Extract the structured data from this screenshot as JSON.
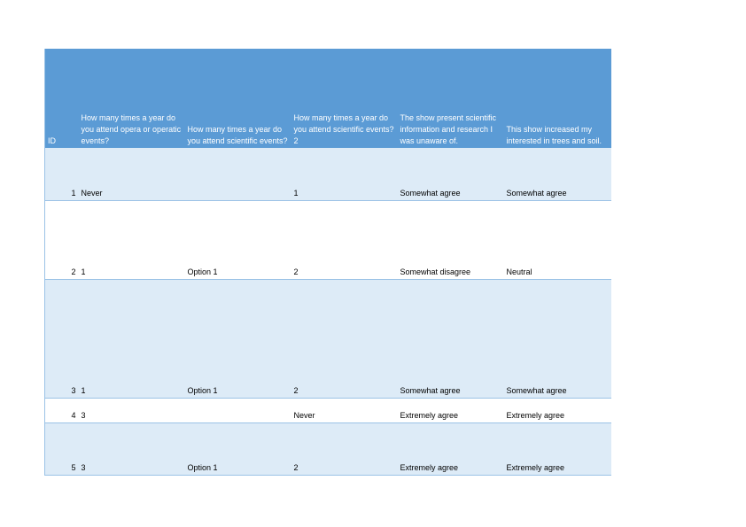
{
  "table": {
    "headers": [
      "ID",
      "How many times a year do you attend opera or operatic events?",
      "How many times a year do you attend scientific events?",
      "How many times a year do you attend scientific events?\n2",
      "The show present scientific information and research I was unaware of.",
      "This show increased my interested in trees and soil."
    ],
    "rows": [
      [
        "1",
        "Never",
        "",
        "1",
        "Somewhat agree",
        "Somewhat agree"
      ],
      [
        "2",
        "1",
        "Option 1",
        "2",
        "Somewhat disagree",
        "Neutral"
      ],
      [
        "3",
        "1",
        "Option 1",
        "2",
        "Somewhat agree",
        "Somewhat agree"
      ],
      [
        "4",
        "3",
        "",
        "Never",
        "Extremely agree",
        "Extremely agree"
      ],
      [
        "5",
        "3",
        "Option 1",
        "2",
        "Extremely agree",
        "Extremely agree"
      ]
    ]
  },
  "colors": {
    "header": "#5b9bd5",
    "band": "#ddebf7",
    "border": "#9bc2e6"
  }
}
